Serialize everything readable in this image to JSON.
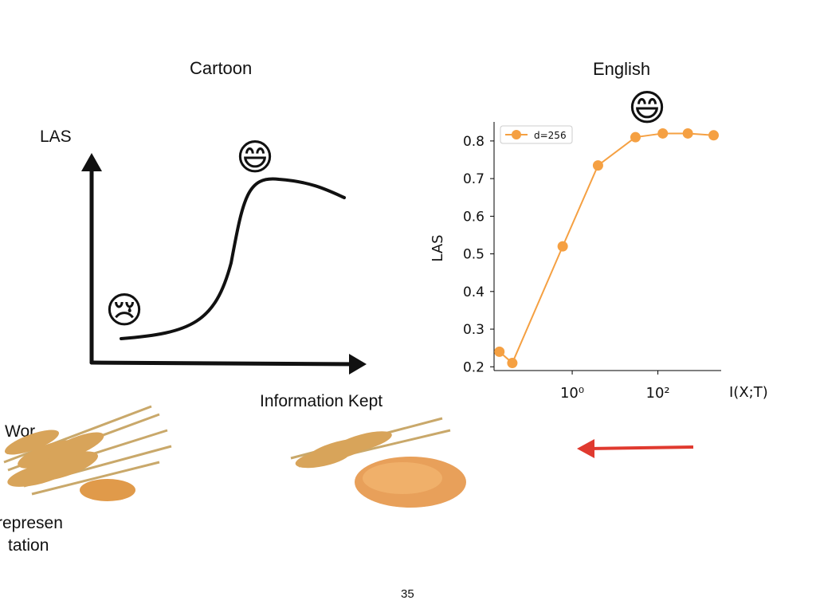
{
  "slide": {
    "cartoon_title": "Cartoon",
    "english_title": "English",
    "cartoon_ylabel": "LAS",
    "cartoon_xlabel": "Information Kept",
    "happy_emoji": "😄",
    "sad_emoji": "😢",
    "left_text_top": "Wor",
    "left_text_line1": "represen",
    "left_text_line2": "tation",
    "page_number": "35",
    "arrow_color": "#e03a2f"
  },
  "chart_data": {
    "type": "line",
    "series": [
      {
        "name": "d=256",
        "x": [
          0.02,
          0.04,
          0.6,
          4,
          30,
          130,
          500,
          2000
        ],
        "y": [
          0.24,
          0.21,
          0.52,
          0.735,
          0.81,
          0.82,
          0.82,
          0.815
        ],
        "color": "#f5a042"
      }
    ],
    "ylabel": "LAS",
    "xlabel": "I(X;T)",
    "xscale": "log",
    "xlim": [
      0.015,
      3000
    ],
    "ylim": [
      0.19,
      0.84
    ],
    "yticks": [
      0.2,
      0.3,
      0.4,
      0.5,
      0.6,
      0.7,
      0.8
    ],
    "ytick_labels": [
      "0.2",
      "0.3",
      "0.4",
      "0.5",
      "0.6",
      "0.7",
      "0.8"
    ],
    "xticks": [
      1,
      100
    ],
    "xtick_labels": [
      "10⁰",
      "10²"
    ],
    "legend_position": "top-left",
    "grid": false
  }
}
